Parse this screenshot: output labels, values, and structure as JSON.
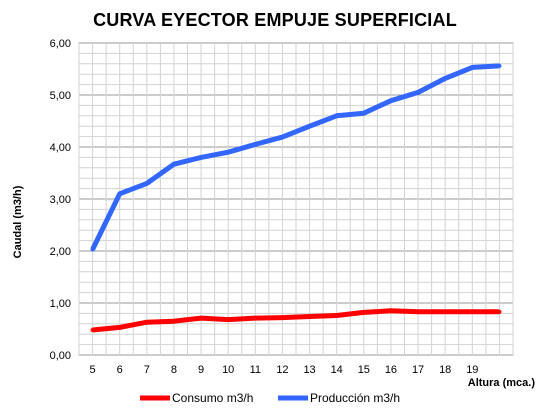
{
  "chart_data": {
    "type": "line",
    "title": "CURVA  EYECTOR EMPUJE SUPERFICIAL",
    "xlabel": "Altura  (mca.)",
    "ylabel": "Caudal (m3/h)",
    "x": [
      5,
      6,
      7,
      8,
      9,
      10,
      11,
      12,
      13,
      14,
      15,
      16,
      17,
      18,
      19,
      20
    ],
    "x_tick_labels": [
      "5",
      "6",
      "7",
      "8",
      "9",
      "10",
      "11",
      "12",
      "13",
      "14",
      "15",
      "16",
      "17",
      "18",
      "19"
    ],
    "y_tick_labels": [
      "0,00",
      "1,00",
      "2,00",
      "3,00",
      "4,00",
      "5,00",
      "6,00"
    ],
    "ylim": [
      0,
      6
    ],
    "grid": true,
    "legend_position": "bottom",
    "series": [
      {
        "name": "Consumo m3/h",
        "color": "#ff0000",
        "values": [
          0.48,
          0.53,
          0.63,
          0.65,
          0.71,
          0.68,
          0.71,
          0.72,
          0.74,
          0.76,
          0.82,
          0.85,
          0.83,
          0.83,
          0.83,
          0.83
        ]
      },
      {
        "name": "Producción m3/h",
        "color": "#3366ff",
        "values": [
          2.03,
          3.1,
          3.3,
          3.67,
          3.8,
          3.9,
          4.05,
          4.19,
          4.4,
          4.6,
          4.65,
          4.89,
          5.05,
          5.32,
          5.53,
          5.56
        ]
      }
    ]
  }
}
